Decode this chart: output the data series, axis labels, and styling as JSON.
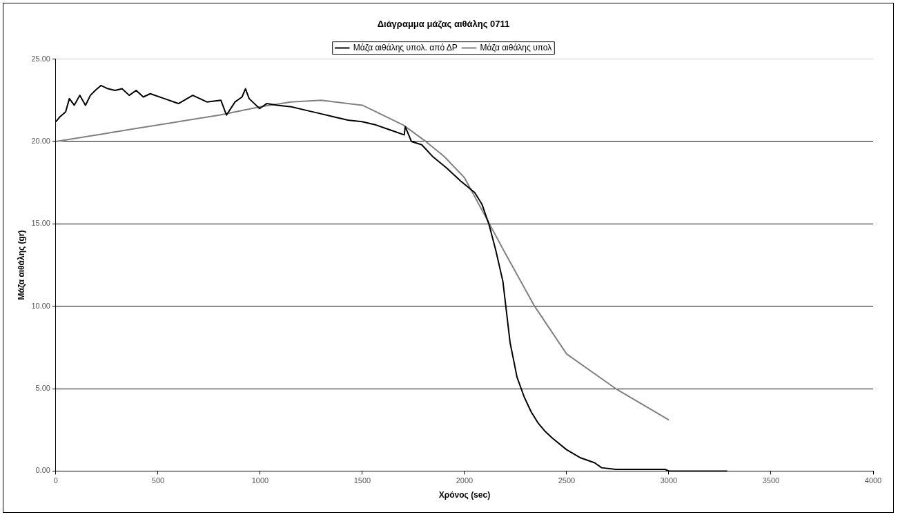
{
  "chart_data": {
    "type": "line",
    "title": "Διάγραμμα μάζας αιθάλης 0711",
    "xlabel": "Χρόνος (sec)",
    "ylabel": "Μάζα αιθάλης (gr)",
    "xlim": [
      0,
      4000
    ],
    "xticks": [
      0,
      500,
      1000,
      1500,
      2000,
      2500,
      3000,
      3500,
      4000
    ],
    "ylim": [
      0,
      25
    ],
    "yticks": [
      {
        "value": 0,
        "label": "0.00"
      },
      {
        "value": 5,
        "label": "5.00"
      },
      {
        "value": 10,
        "label": "10.00"
      },
      {
        "value": 15,
        "label": "15.00"
      },
      {
        "value": 20,
        "label": "20.00"
      },
      {
        "value": 25,
        "label": "25.00"
      }
    ],
    "grid": "y",
    "legend": "top",
    "marker": "none",
    "line_style": "solid",
    "series": [
      {
        "name": "Μάζα αιθάλης υπολ. από ΔP",
        "color": "#000000",
        "x": [
          0,
          20,
          48,
          66,
          90,
          117,
          145,
          169,
          193,
          221,
          255,
          290,
          324,
          359,
          393,
          428,
          462,
          531,
          600,
          670,
          739,
          808,
          835,
          877,
          911,
          928,
          946,
          997,
          1032,
          1084,
          1153,
          1222,
          1291,
          1360,
          1429,
          1498,
          1567,
          1636,
          1705,
          1710,
          1740,
          1791,
          1843,
          1912,
          1981,
          2050,
          2085,
          2119,
          2153,
          2188,
          2205,
          2223,
          2257,
          2292,
          2326,
          2361,
          2395,
          2430,
          2499,
          2568,
          2637,
          2671,
          2740,
          2982,
          3000,
          3286
        ],
        "values": [
          21.2,
          21.5,
          21.8,
          22.6,
          22.2,
          22.8,
          22.2,
          22.8,
          23.1,
          23.4,
          23.2,
          23.1,
          23.2,
          22.8,
          23.1,
          22.7,
          22.9,
          22.6,
          22.3,
          22.8,
          22.4,
          22.5,
          21.6,
          22.4,
          22.7,
          23.2,
          22.6,
          22.0,
          22.3,
          22.2,
          22.1,
          21.9,
          21.7,
          21.5,
          21.3,
          21.2,
          21.0,
          20.7,
          20.4,
          20.9,
          20.0,
          19.8,
          19.1,
          18.4,
          17.6,
          16.9,
          16.2,
          15.0,
          13.4,
          11.5,
          9.7,
          7.8,
          5.7,
          4.5,
          3.6,
          2.9,
          2.4,
          2.0,
          1.3,
          0.8,
          0.5,
          0.2,
          0.1,
          0.1,
          0,
          0
        ]
      },
      {
        "name": "Μάζα αιθάλης υπολ",
        "color": "#808080",
        "x": [
          0,
          200,
          400,
          600,
          800,
          1000,
          1150,
          1300,
          1500,
          1700,
          1800,
          1900,
          2000,
          2100,
          2200,
          2343,
          2500,
          2740,
          3000
        ],
        "values": [
          20.0,
          20.4,
          20.8,
          21.2,
          21.6,
          22.1,
          22.4,
          22.5,
          22.2,
          21.0,
          20.1,
          19.1,
          17.8,
          15.5,
          13.2,
          10.0,
          7.1,
          5.0,
          3.1
        ]
      }
    ]
  }
}
